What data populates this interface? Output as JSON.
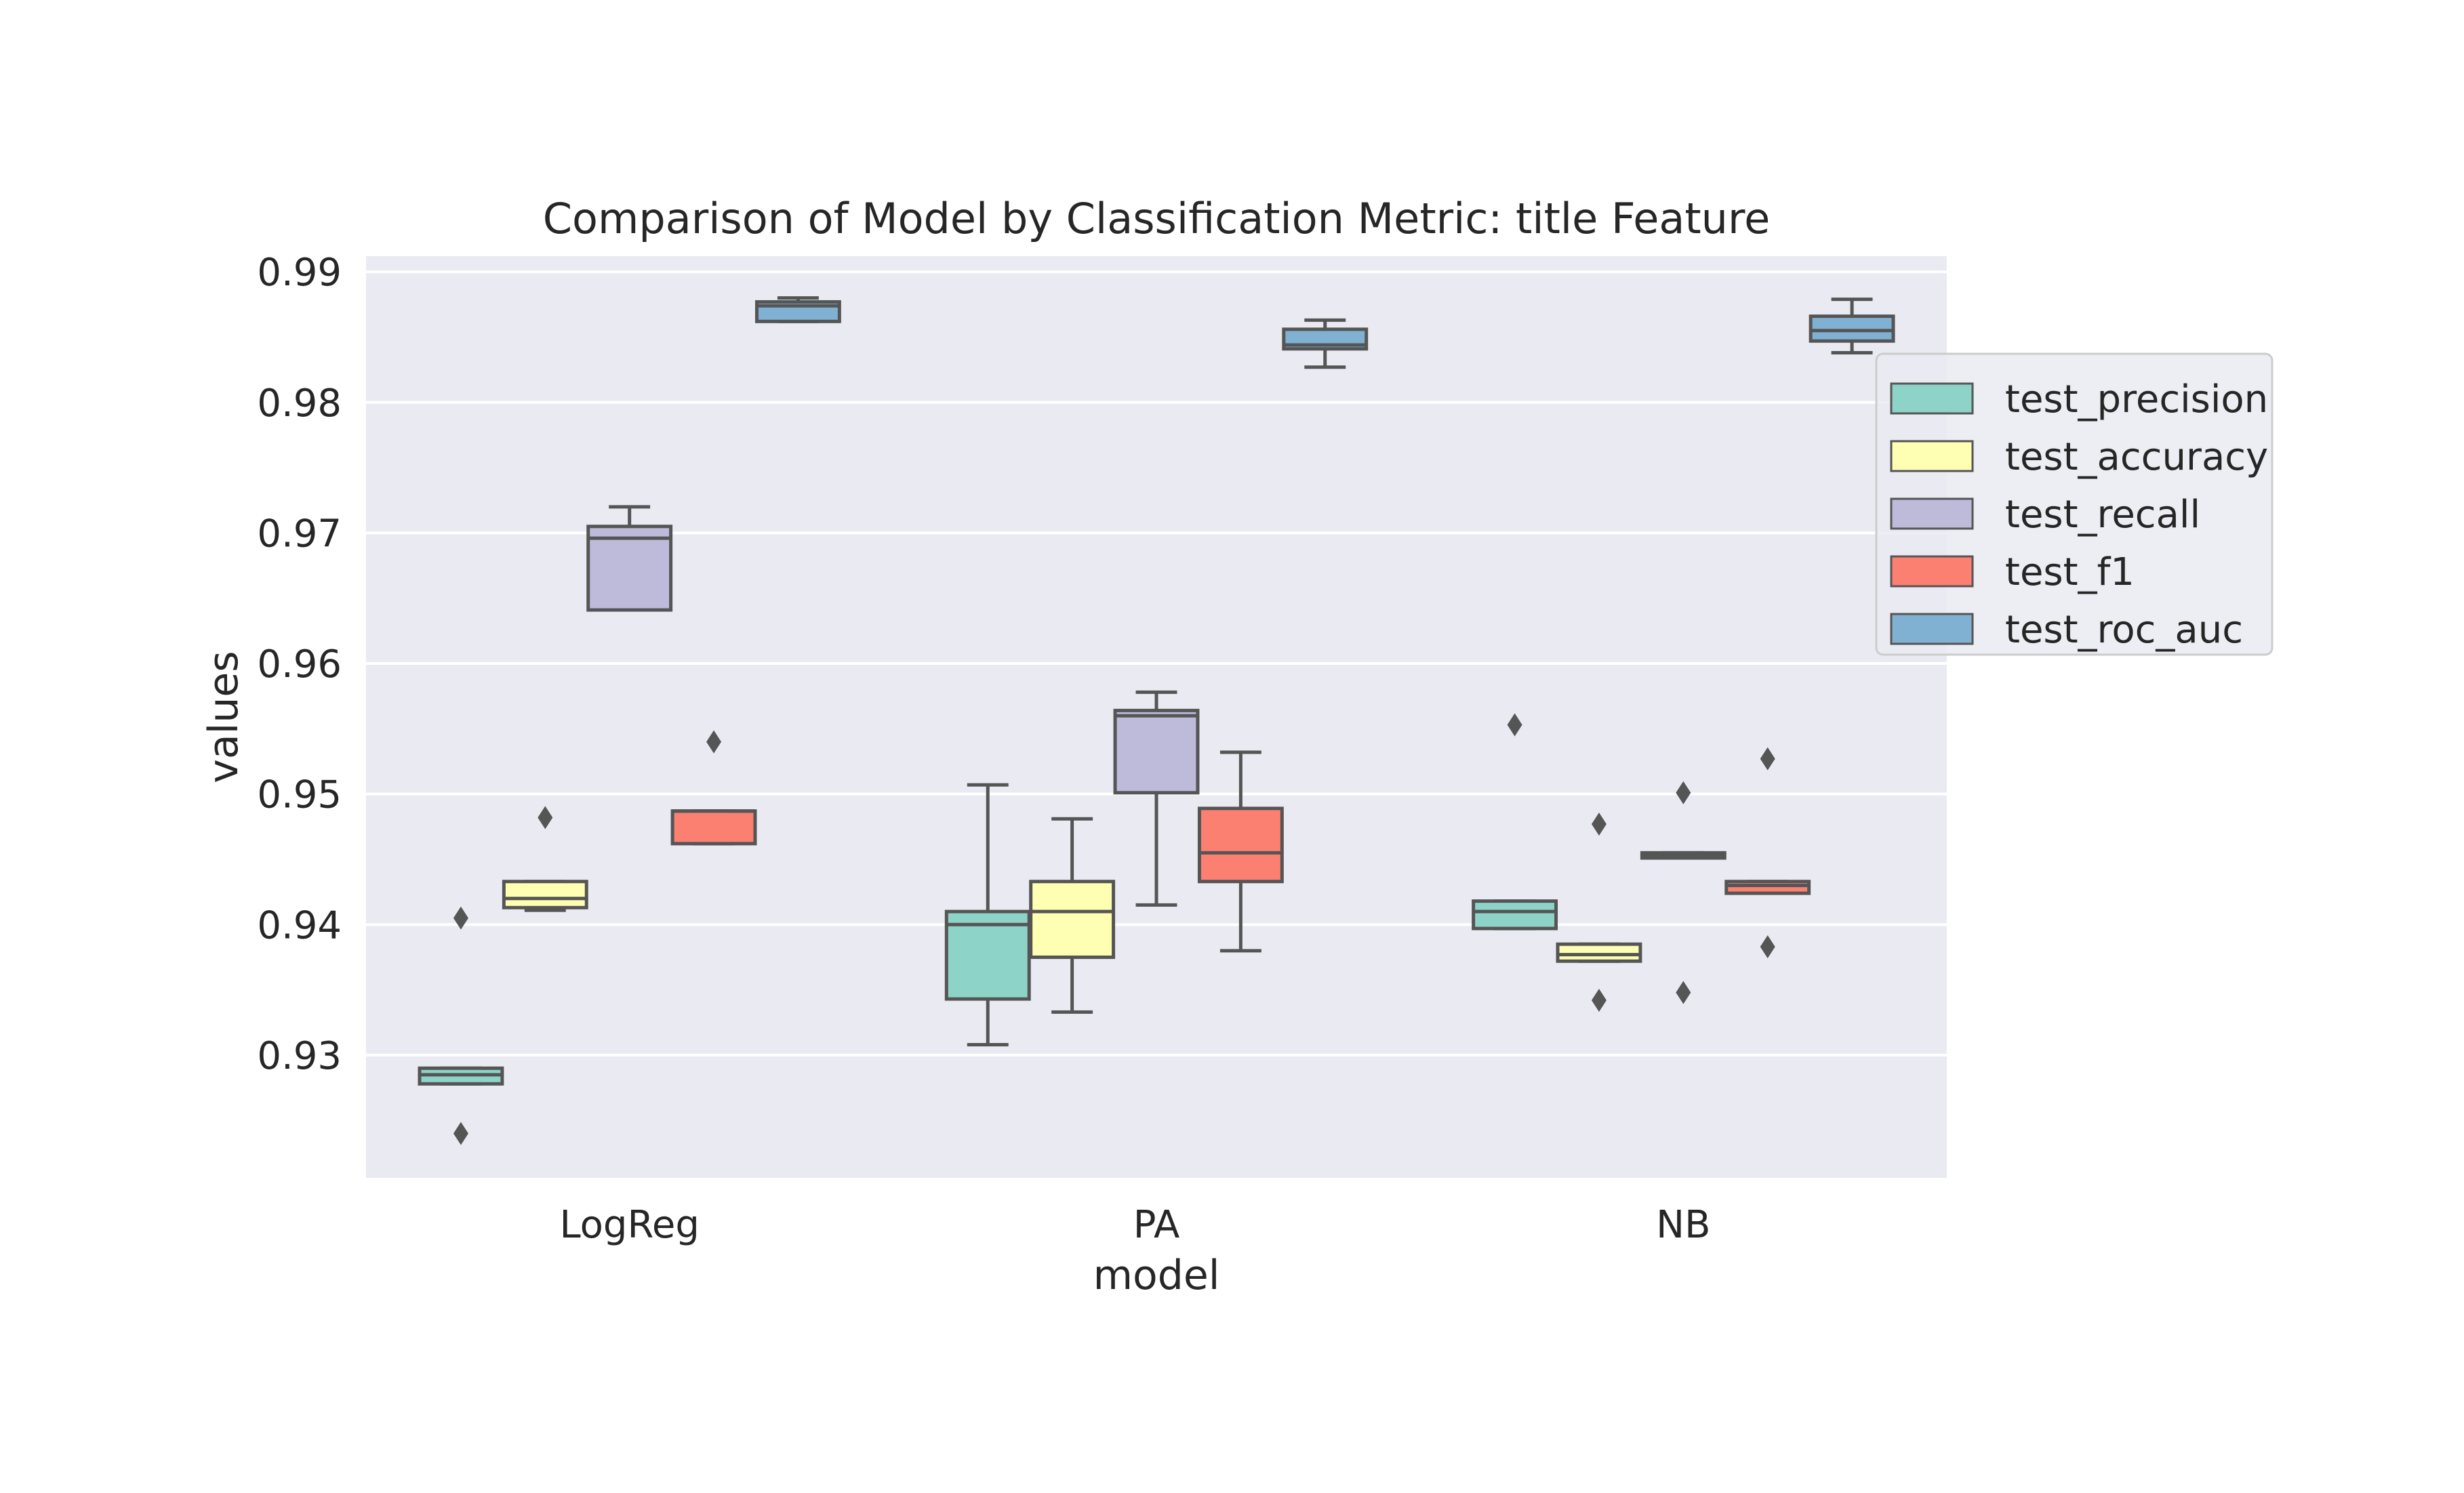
{
  "chart_data": {
    "type": "box",
    "title": "Comparison of Model by Classification Metric: title Feature",
    "xlabel": "model",
    "ylabel": "values",
    "ylim": [
      0.9206,
      0.9912
    ],
    "yticks": [
      0.93,
      0.94,
      0.95,
      0.96,
      0.97,
      0.98,
      0.99
    ],
    "ytick_labels": [
      "0.93",
      "0.94",
      "0.95",
      "0.96",
      "0.97",
      "0.98",
      "0.99"
    ],
    "grid": true,
    "legend_position": "upper-right, outside plot",
    "categories": [
      "LogReg",
      "PA",
      "NB"
    ],
    "series": [
      {
        "name": "test_precision",
        "color": "#8dd3c7",
        "boxes": [
          {
            "whisker_low": 0.9278,
            "q1": 0.9278,
            "median": 0.9285,
            "q3": 0.929,
            "whisker_high": 0.929,
            "outliers": [
              0.924,
              0.9405
            ]
          },
          {
            "whisker_low": 0.9308,
            "q1": 0.9343,
            "median": 0.94,
            "q3": 0.941,
            "whisker_high": 0.9507,
            "outliers": []
          },
          {
            "whisker_low": 0.9397,
            "q1": 0.9397,
            "median": 0.941,
            "q3": 0.9418,
            "whisker_high": 0.9418,
            "outliers": [
              0.9553
            ]
          }
        ]
      },
      {
        "name": "test_accuracy",
        "color": "#ffffb3",
        "boxes": [
          {
            "whisker_low": 0.9411,
            "q1": 0.9413,
            "median": 0.942,
            "q3": 0.9433,
            "whisker_high": 0.9433,
            "outliers": [
              0.9482
            ]
          },
          {
            "whisker_low": 0.9333,
            "q1": 0.9375,
            "median": 0.941,
            "q3": 0.9433,
            "whisker_high": 0.9481,
            "outliers": []
          },
          {
            "whisker_low": 0.9372,
            "q1": 0.9372,
            "median": 0.9377,
            "q3": 0.9385,
            "whisker_high": 0.9385,
            "outliers": [
              0.9342,
              0.9477
            ]
          }
        ]
      },
      {
        "name": "test_recall",
        "color": "#bebada",
        "boxes": [
          {
            "whisker_low": 0.9641,
            "q1": 0.9641,
            "median": 0.9696,
            "q3": 0.9705,
            "whisker_high": 0.972,
            "outliers": []
          },
          {
            "whisker_low": 0.9415,
            "q1": 0.9501,
            "median": 0.956,
            "q3": 0.9564,
            "whisker_high": 0.9578,
            "outliers": []
          },
          {
            "whisker_low": 0.9451,
            "q1": 0.9451,
            "median": 0.9453,
            "q3": 0.9455,
            "whisker_high": 0.9455,
            "outliers": [
              0.9348,
              0.9501
            ]
          }
        ]
      },
      {
        "name": "test_f1",
        "color": "#fb8072",
        "boxes": [
          {
            "whisker_low": 0.9462,
            "q1": 0.9462,
            "median": 0.9487,
            "q3": 0.9487,
            "whisker_high": 0.9487,
            "outliers": [
              0.954
            ]
          },
          {
            "whisker_low": 0.938,
            "q1": 0.9433,
            "median": 0.9455,
            "q3": 0.9489,
            "whisker_high": 0.9532,
            "outliers": []
          },
          {
            "whisker_low": 0.9424,
            "q1": 0.9424,
            "median": 0.943,
            "q3": 0.9433,
            "whisker_high": 0.9433,
            "outliers": [
              0.9383,
              0.9527
            ]
          }
        ]
      },
      {
        "name": "test_roc_auc",
        "color": "#80b1d3",
        "boxes": [
          {
            "whisker_low": 0.9862,
            "q1": 0.9862,
            "median": 0.9874,
            "q3": 0.9877,
            "whisker_high": 0.988,
            "outliers": []
          },
          {
            "whisker_low": 0.9827,
            "q1": 0.9841,
            "median": 0.9844,
            "q3": 0.9856,
            "whisker_high": 0.9863,
            "outliers": []
          },
          {
            "whisker_low": 0.9838,
            "q1": 0.9847,
            "median": 0.9855,
            "q3": 0.9866,
            "whisker_high": 0.9879,
            "outliers": []
          }
        ]
      }
    ]
  }
}
